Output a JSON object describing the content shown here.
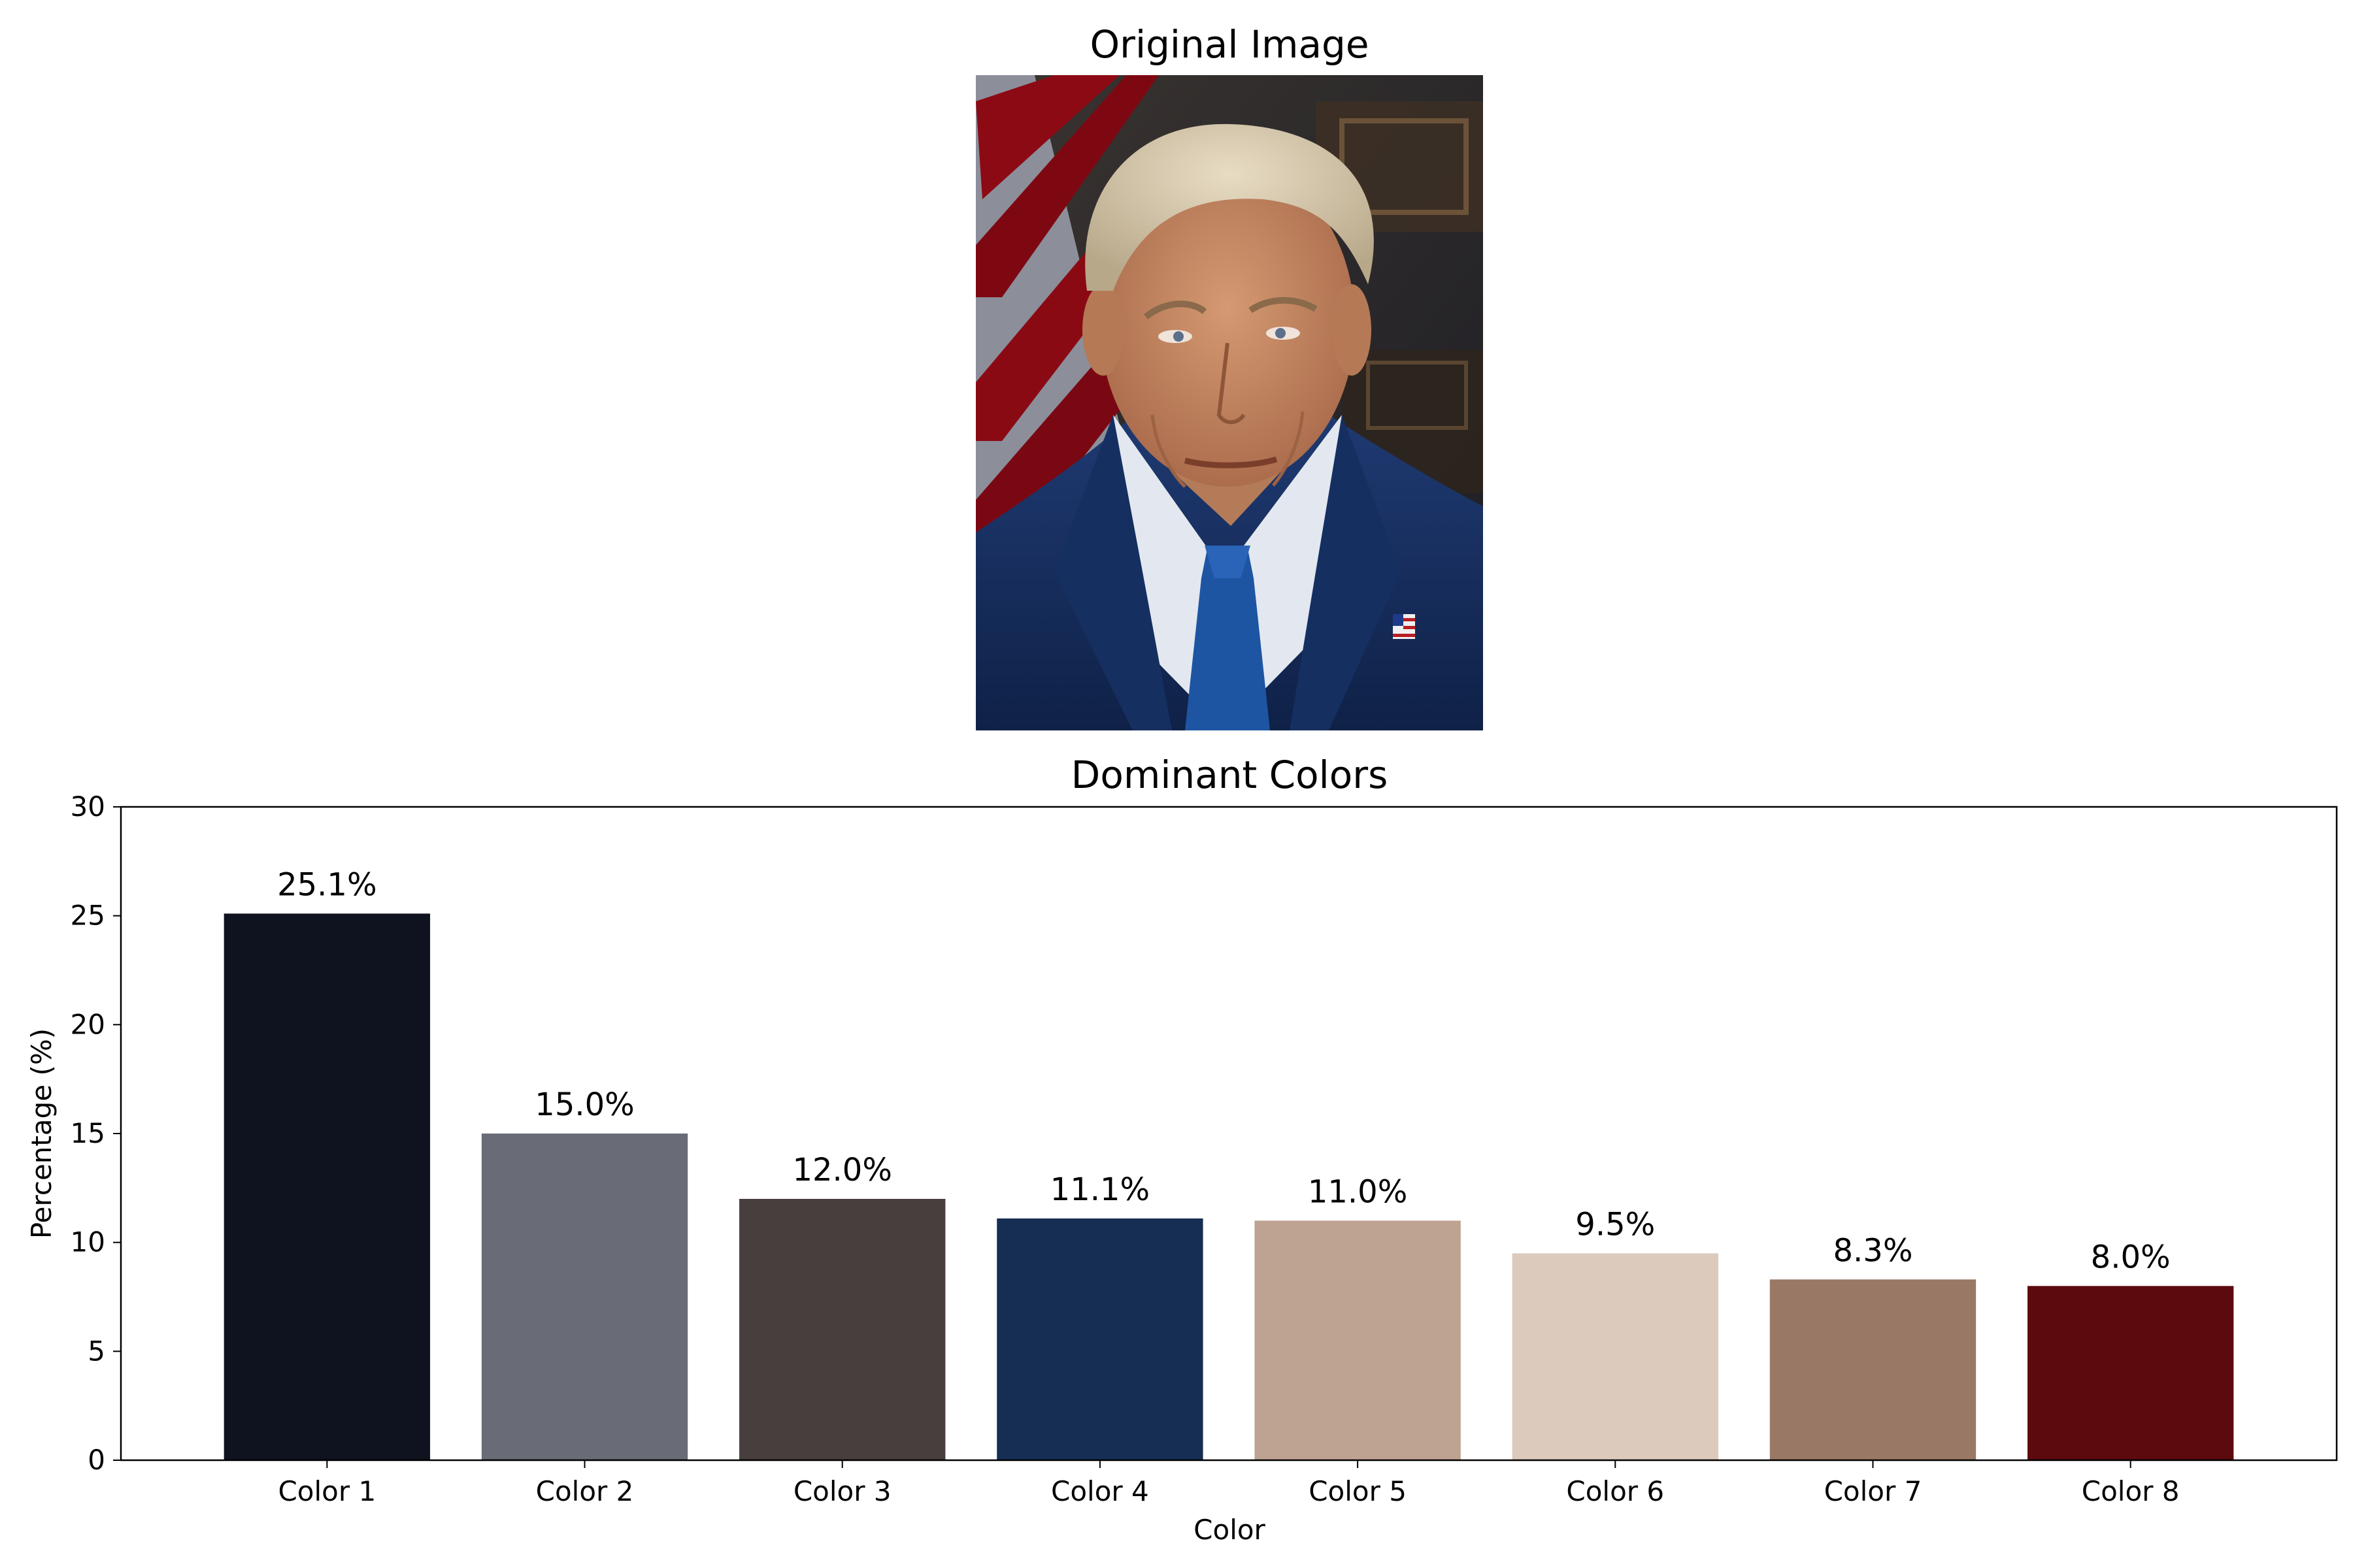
{
  "image_panel": {
    "title": "Original Image",
    "photo": "portrait photograph: man in navy suit, white shirt and blue tie, US flag lapel pin, American flag and dark wood paneling in background"
  },
  "chart_data": {
    "type": "bar",
    "title": "Dominant Colors",
    "xlabel": "Color",
    "ylabel": "Percentage (%)",
    "categories": [
      "Color 1",
      "Color 2",
      "Color 3",
      "Color 4",
      "Color 5",
      "Color 6",
      "Color 7",
      "Color 8"
    ],
    "values": [
      25.1,
      15.0,
      12.0,
      11.1,
      11.0,
      9.5,
      8.3,
      8.0
    ],
    "labels": [
      "25.1%",
      "15.0%",
      "12.0%",
      "11.1%",
      "11.0%",
      "9.5%",
      "8.3%",
      "8.0%"
    ],
    "colors": [
      "#0f131f",
      "#696b77",
      "#483e3d",
      "#172e54",
      "#bea292",
      "#dccabd",
      "#997965",
      "#5c0a0e"
    ],
    "ylim": [
      0,
      30
    ],
    "yticks": [
      0,
      5,
      10,
      15,
      20,
      25,
      30
    ],
    "grid": false
  }
}
